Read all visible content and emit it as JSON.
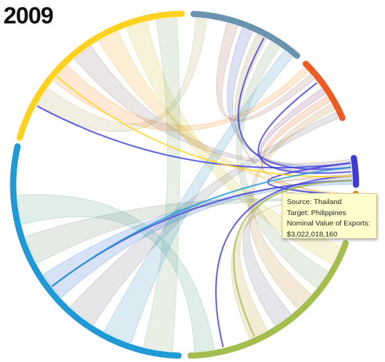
{
  "header": {
    "year": "2009"
  },
  "tooltip": {
    "source_line": "Source: Thailand",
    "target_line": "Target: Philippines",
    "value_label": "Nominal Value of Exports:",
    "value": "$3,022,018,160"
  },
  "chart_data": {
    "type": "chord",
    "title": "2009",
    "groups": [
      {
        "color": "#ffd21f",
        "start_deg": 286,
        "end_deg": 359
      },
      {
        "color": "#6993ae",
        "start_deg": 3,
        "end_deg": 41
      },
      {
        "color": "#ee5a24",
        "start_deg": 45,
        "end_deg": 67
      },
      {
        "color": "#3d3ed8",
        "start_deg": 81,
        "end_deg": 90
      },
      {
        "color": "#e58d12",
        "start_deg": 93,
        "end_deg": 97
      },
      {
        "color": "#a3bd4f",
        "start_deg": 110,
        "end_deg": 178
      },
      {
        "color": "#1f9ad6",
        "start_deg": 182,
        "end_deg": 283
      }
    ],
    "highlighted_chords": [
      {
        "source": 3,
        "target": 0
      },
      {
        "source": 3,
        "target": 1
      },
      {
        "source": 3,
        "target": 2
      },
      {
        "source": 3,
        "target": 5
      },
      {
        "source": 3,
        "target": 6
      },
      {
        "source": 3,
        "target": 4
      },
      {
        "source": 0,
        "target": 3
      },
      {
        "source": 6,
        "target": 3
      },
      {
        "source": 5,
        "target": 3
      }
    ],
    "highlighted_flow": {
      "source": "Thailand",
      "target": "Philippines",
      "value": 3022018160
    }
  }
}
